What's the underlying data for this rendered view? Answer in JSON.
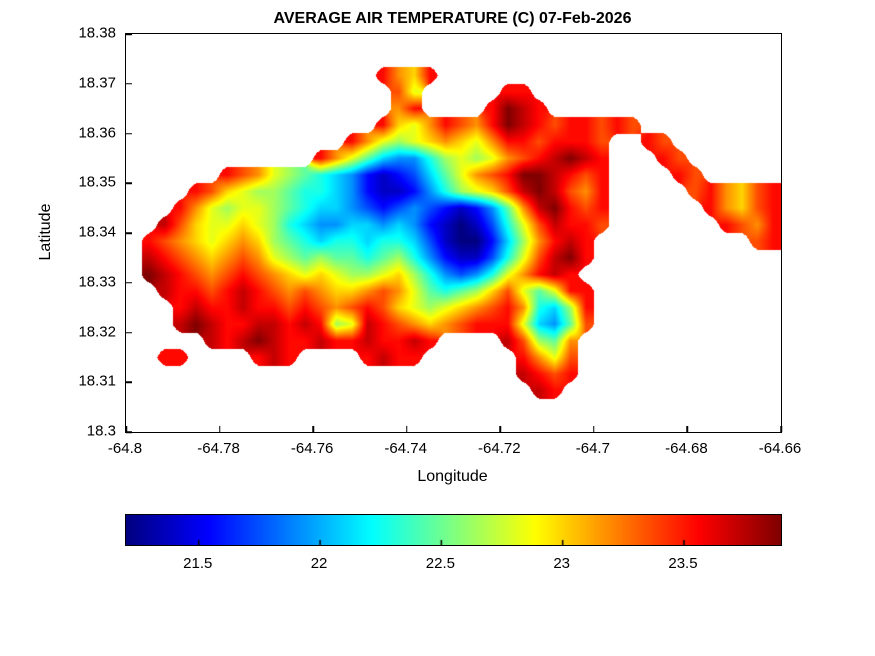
{
  "chart_data": {
    "type": "heatmap",
    "title": "AVERAGE AIR TEMPERATURE (C) 07-Feb-2026",
    "xlabel": "Longitude",
    "ylabel": "Latitude",
    "x_range": [
      -64.8,
      -64.66
    ],
    "y_range": [
      18.3,
      18.38
    ],
    "x_ticks": [
      -64.8,
      -64.78,
      -64.76,
      -64.74,
      -64.72,
      -64.7,
      -64.68,
      -64.66
    ],
    "x_tick_labels": [
      "-64.8",
      "-64.78",
      "-64.76",
      "-64.74",
      "-64.72",
      "-64.7",
      "-64.68",
      "-64.66"
    ],
    "y_ticks": [
      18.3,
      18.31,
      18.32,
      18.33,
      18.34,
      18.35,
      18.36,
      18.37,
      18.38
    ],
    "y_tick_labels": [
      "18.3",
      "18.31",
      "18.32",
      "18.33",
      "18.34",
      "18.35",
      "18.36",
      "18.37",
      "18.38"
    ],
    "colormap": "jet",
    "value_unit": "degrees C",
    "value_range": [
      21.2,
      23.9
    ],
    "colorbar_ticks": [
      21.5,
      22,
      22.5,
      23,
      23.5
    ],
    "colorbar_tick_labels": [
      "21.5",
      "22",
      "22.5",
      "23",
      "23.5"
    ],
    "grid": {
      "description": "Average air temperature (C) over the island, row-major from north (lat 18.38) to south (lat 18.30), west (lon -64.80) to east (lon -64.66). Warm (red ~23.5-23.9 C) coastline, cool (blue ~21.2-21.6 C) interior highlands, green/cyan mid-elevations.",
      "encoding": "'.' = no data (ocean); hex digit 0-f = temperature = 21.2 + (digit/15)*2.7 degrees C",
      "cols": 42,
      "rows": 24,
      "rows_data": [
        "..........................................",
        "..........................................",
        "................dbad......................",
        ".................c9.....dd................",
        ".................bd....dfed...............",
        "................da9bdcbdfedcddcdc.........",
        "..............db989aba9bddcdddc..dc.......",
        "............db9754468989bcdefed...dc......",
        "......dcb9876542123579bcdffedcd....dc.....",
        "....dca9887665421124689acefecbd.....cdbacd",
        "...db98998765543234321247befdcd......dbacd",
        "..eca99a986544554542101369ceddc.......dcbd",
        ".dcba9aba87656656653100258bded..........cd",
        ".edcbabcb98787767864211369cefd............",
        ".fedcbcdcba9a9889a8643469bded.............",
        "..eddcdedcbcbaabcb97678ac979dd............",
        "...deddeddcdcbcdca989abcdb658d............",
        "...efeddeeded89edcbabcddd9547c............",
        ".....edefeddeddedded....ec87b.............",
        "..dd....ded....dedd......db9c.............",
        ".........................edcd.............",
        "..........................ed..............",
        "..........................................",
        ".........................................."
      ]
    }
  }
}
